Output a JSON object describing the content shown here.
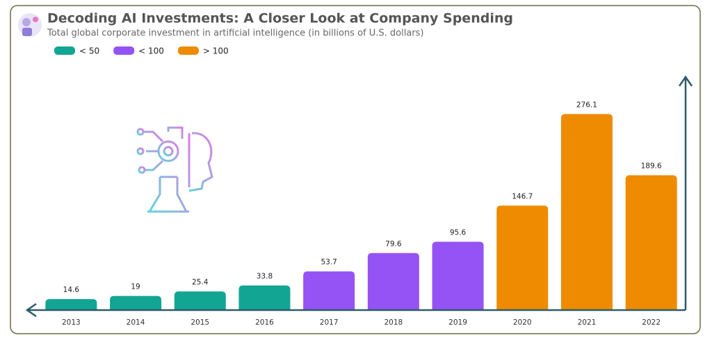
{
  "chart_data": {
    "type": "bar",
    "title": "Decoding AI Investments: A Closer Look at Company Spending",
    "subtitle": "Total global corporate investment in artificial intelligence (in billions of U.S. dollars)",
    "categories": [
      "2013",
      "2014",
      "2015",
      "2016",
      "2017",
      "2018",
      "2019",
      "2020",
      "2021",
      "2022"
    ],
    "values": [
      14.6,
      19,
      25.4,
      33.8,
      53.7,
      79.6,
      95.6,
      146.7,
      276.1,
      189.6
    ],
    "colors": [
      "#12a594",
      "#12a594",
      "#12a594",
      "#12a594",
      "#9553f5",
      "#9553f5",
      "#9553f5",
      "#ee8b00",
      "#ee8b00",
      "#ee8b00"
    ],
    "legend": [
      {
        "label": "< 50",
        "color": "#12a594"
      },
      {
        "label": "< 100",
        "color": "#9553f5"
      },
      {
        "label": "> 100",
        "color": "#ee8b00"
      }
    ],
    "ylim": [
      0,
      300
    ]
  }
}
